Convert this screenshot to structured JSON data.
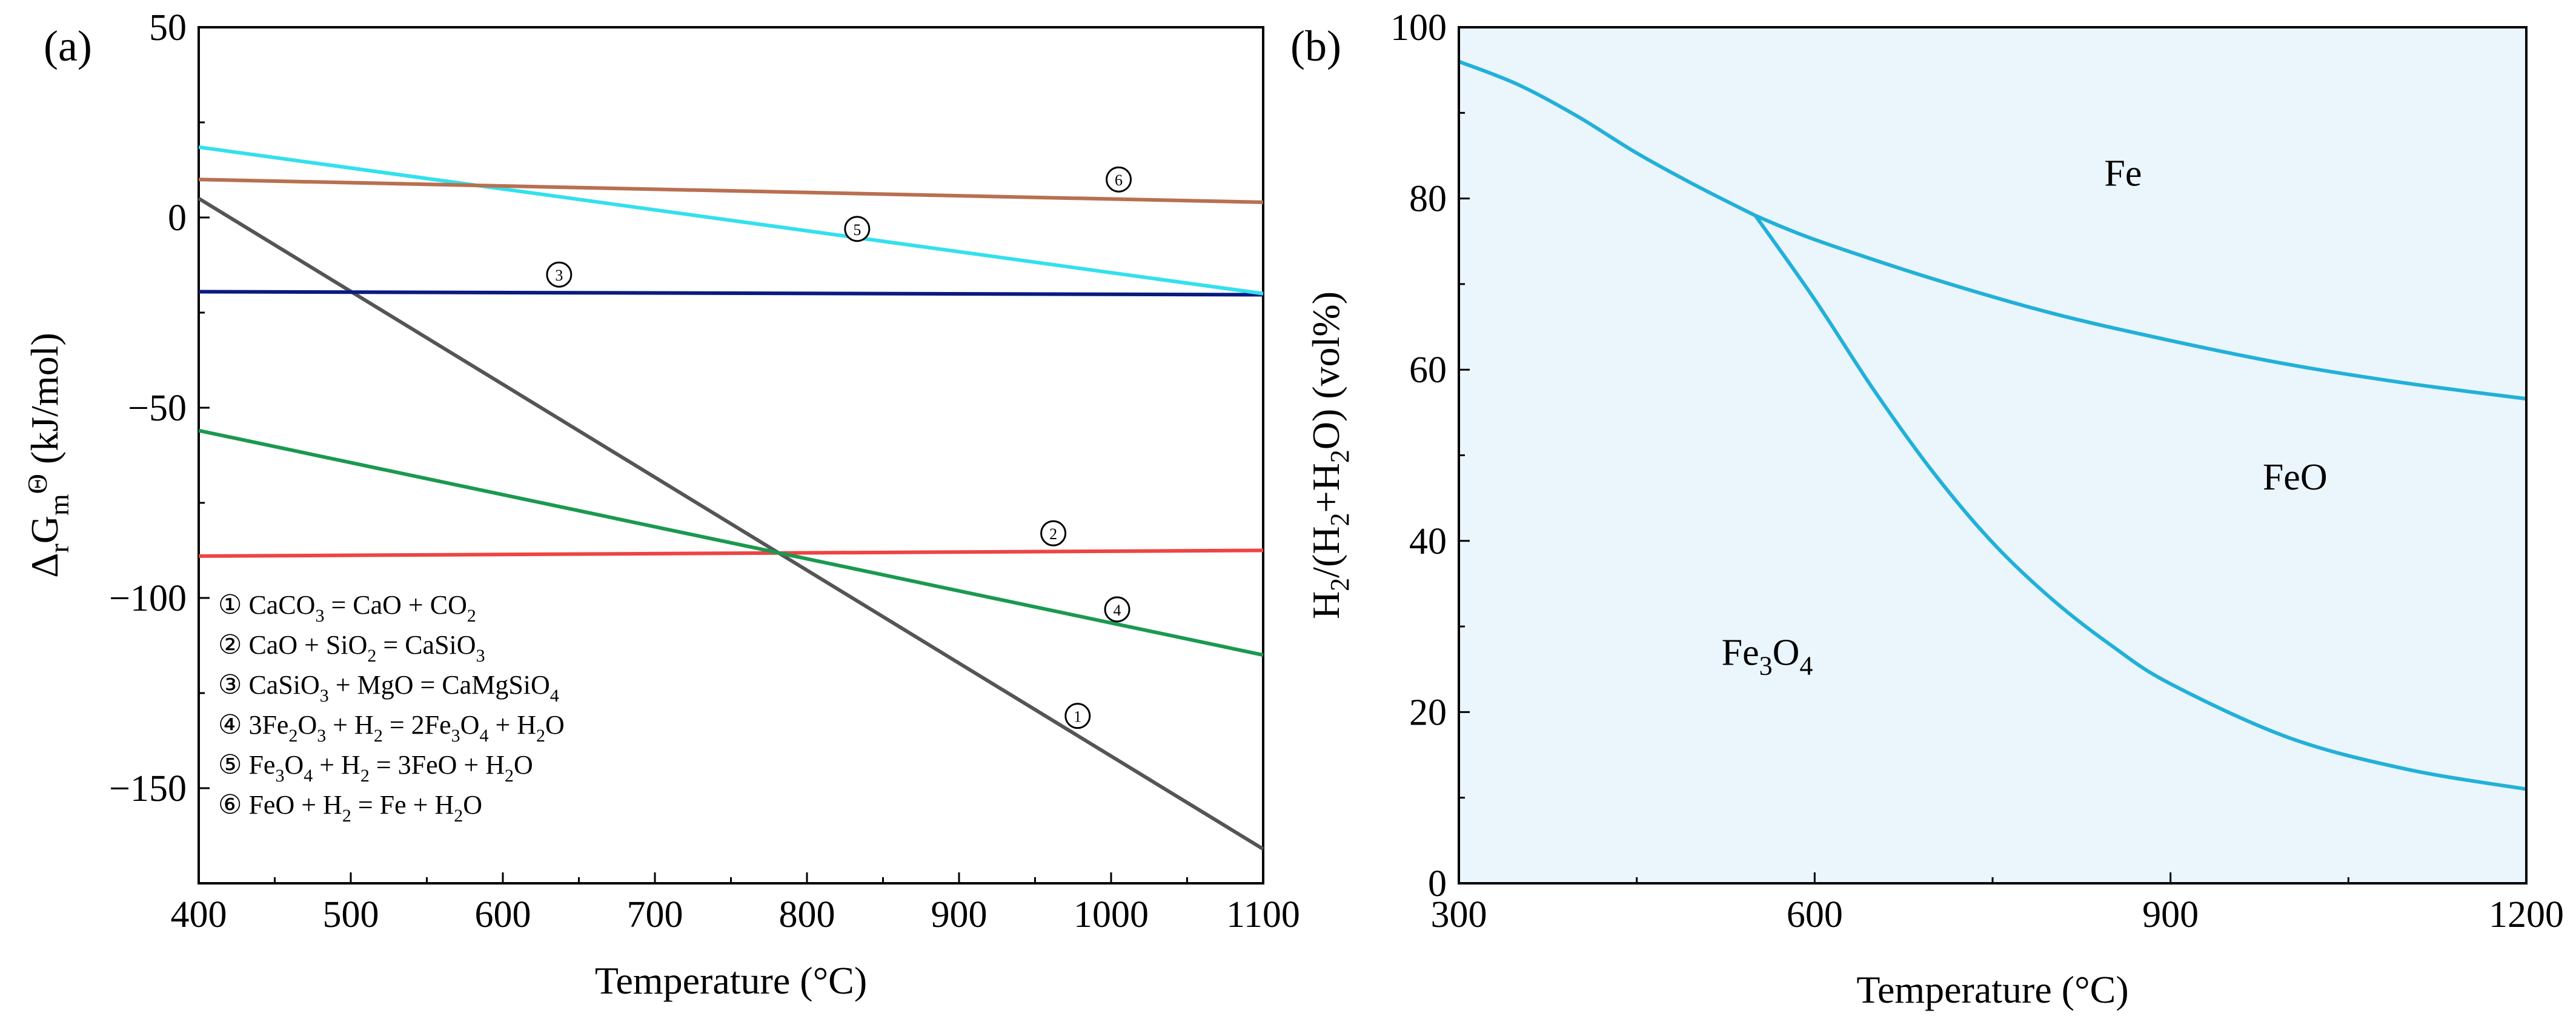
{
  "chart_data": [
    {
      "type": "line",
      "panel_label": "(a)",
      "xlabel": "Temperature (°C)",
      "ylabel_parts": [
        "Δ",
        "r",
        "G",
        "m",
        "Θ",
        " (kJ/mol)"
      ],
      "xlim": [
        400,
        1100
      ],
      "ylim": [
        -175,
        50
      ],
      "xticks": [
        400,
        500,
        600,
        700,
        800,
        900,
        1000,
        1100
      ],
      "yticks": [
        50,
        0,
        -50,
        -100,
        -150
      ],
      "ytick_labels": [
        "50",
        "0",
        "−50",
        "−100",
        "−150"
      ],
      "grid": false,
      "legend_position": "bottom-left",
      "series": [
        {
          "marker": "①",
          "x": [
            400,
            1100
          ],
          "y": [
            5,
            -166
          ],
          "color": "#555555",
          "label_pos": [
            978,
            -131
          ],
          "legend": [
            {
              "t": "① CaCO"
            },
            {
              "t": "3",
              "s": true
            },
            {
              "t": " = CaO + CO"
            },
            {
              "t": "2",
              "s": true
            }
          ]
        },
        {
          "marker": "②",
          "x": [
            400,
            1100
          ],
          "y": [
            -89,
            -87.5
          ],
          "color": "#ee4444",
          "label_pos": [
            962,
            -83
          ],
          "legend": [
            {
              "t": "② CaO + SiO"
            },
            {
              "t": "2",
              "s": true
            },
            {
              "t": " = CaSiO"
            },
            {
              "t": "3",
              "s": true
            }
          ]
        },
        {
          "marker": "③",
          "x": [
            400,
            1100
          ],
          "y": [
            -19.5,
            -20.3
          ],
          "color": "#0a1a80",
          "label_pos": [
            637,
            -15
          ],
          "legend": [
            {
              "t": "③ CaSiO"
            },
            {
              "t": "3",
              "s": true
            },
            {
              "t": " + MgO = CaMgSiO"
            },
            {
              "t": "4",
              "s": true
            }
          ]
        },
        {
          "marker": "④",
          "x": [
            400,
            1100
          ],
          "y": [
            -56,
            -115
          ],
          "color": "#1a9950",
          "label_pos": [
            1004,
            -103
          ],
          "legend": [
            {
              "t": "④ 3Fe"
            },
            {
              "t": "2",
              "s": true
            },
            {
              "t": "O"
            },
            {
              "t": "3",
              "s": true
            },
            {
              "t": " + H"
            },
            {
              "t": "2",
              "s": true
            },
            {
              "t": " = 2Fe"
            },
            {
              "t": "3",
              "s": true
            },
            {
              "t": "O"
            },
            {
              "t": "4",
              "s": true
            },
            {
              "t": " + H"
            },
            {
              "t": "2",
              "s": true
            },
            {
              "t": "O"
            }
          ]
        },
        {
          "marker": "⑤",
          "x": [
            400,
            1100
          ],
          "y": [
            18.5,
            -20
          ],
          "color": "#33e0ee",
          "label_pos": [
            833,
            -3
          ],
          "legend": [
            {
              "t": "⑤ Fe"
            },
            {
              "t": "3",
              "s": true
            },
            {
              "t": "O"
            },
            {
              "t": "4",
              "s": true
            },
            {
              "t": " + H"
            },
            {
              "t": "2",
              "s": true
            },
            {
              "t": " = 3FeO + H"
            },
            {
              "t": "2",
              "s": true
            },
            {
              "t": "O"
            }
          ]
        },
        {
          "marker": "⑥",
          "x": [
            400,
            1100
          ],
          "y": [
            10,
            4
          ],
          "color": "#b87050",
          "label_pos": [
            1005,
            10
          ],
          "legend": [
            {
              "t": "⑥ FeO + H"
            },
            {
              "t": "2",
              "s": true
            },
            {
              "t": " = Fe + H"
            },
            {
              "t": "2",
              "s": true
            },
            {
              "t": "O"
            }
          ]
        }
      ]
    },
    {
      "type": "area",
      "panel_label": "(b)",
      "xlabel": "Temperature (°C)",
      "ylabel_parts": [
        "H",
        "2",
        "/(H",
        "2",
        "+H",
        "2",
        "O) (vol%)"
      ],
      "xlim": [
        300,
        1200
      ],
      "ylim": [
        0,
        100
      ],
      "xticks": [
        300,
        600,
        900,
        1200
      ],
      "yticks": [
        0,
        20,
        40,
        60,
        80,
        100
      ],
      "grid": false,
      "fill_color": "#eaf5fc",
      "line_color": "#22b0d8",
      "curves": [
        {
          "name": "Fe3O4/Fe",
          "x": [
            300,
            350,
            400,
            450,
            500,
            550
          ],
          "y": [
            96,
            93.3,
            89.6,
            85.3,
            81.5,
            78
          ]
        },
        {
          "name": "FeO/Fe",
          "x": [
            550,
            600,
            700,
            800,
            900,
            1000,
            1100,
            1200
          ],
          "y": [
            78,
            75.2,
            70.6,
            66.6,
            63.4,
            60.6,
            58.4,
            56.6
          ]
        },
        {
          "name": "Fe3O4/FeO",
          "x": [
            550,
            600,
            650,
            700,
            750,
            800,
            850,
            900,
            1000,
            1100,
            1200
          ],
          "y": [
            78,
            68.2,
            57.6,
            48,
            39.8,
            33.2,
            27.8,
            23.3,
            17,
            13.3,
            11
          ]
        }
      ],
      "regions": [
        {
          "name": "Fe",
          "parts": [
            {
              "t": "Fe"
            }
          ],
          "pos": [
            860,
            81.5
          ]
        },
        {
          "name": "FeO",
          "parts": [
            {
              "t": "FeO"
            }
          ],
          "pos": [
            1005,
            46
          ]
        },
        {
          "name": "Fe3O4",
          "parts": [
            {
              "t": "Fe"
            },
            {
              "t": "3",
              "s": true
            },
            {
              "t": "O"
            },
            {
              "t": "4",
              "s": true
            }
          ],
          "pos": [
            560,
            25.5
          ]
        }
      ]
    }
  ]
}
